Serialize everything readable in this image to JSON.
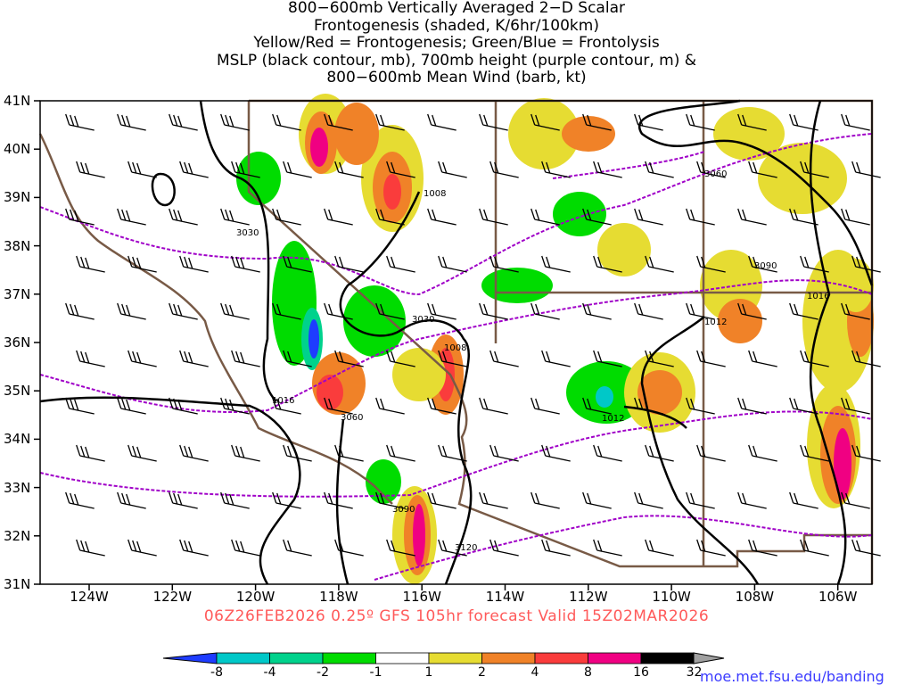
{
  "title_lines": [
    "800−600mb Vertically Averaged 2−D Scalar",
    "Frontogenesis (shaded, K/6hr/100km)",
    "Yellow/Red = Frontogenesis;  Green/Blue = Frontolysis",
    "MSLP (black contour, mb), 700mb height (purple contour, m) &",
    "800−600mb Mean Wind (barb, kt)"
  ],
  "lat_labels": [
    "41N",
    "40N",
    "39N",
    "38N",
    "37N",
    "36N",
    "35N",
    "34N",
    "33N",
    "32N",
    "31N"
  ],
  "lon_labels": [
    "124W",
    "122W",
    "120W",
    "118W",
    "116W",
    "114W",
    "112W",
    "110W",
    "108W",
    "106W"
  ],
  "valid_line": "06Z26FEB2026 0.25º GFS 105hr forecast Valid 15Z02MAR2026",
  "colorbar": {
    "labels": [
      "-8",
      "-4",
      "-2",
      "-1",
      "1",
      "2",
      "4",
      "8",
      "16",
      "32"
    ],
    "colors": [
      "#1e3cff",
      "#00c8c8",
      "#00d28c",
      "#00dc00",
      "#ffffff",
      "#e6dc32",
      "#f08228",
      "#fa3c3c",
      "#f00082",
      "#000000",
      "#a0a0a0"
    ]
  },
  "contour_labels": {
    "mslp": [
      "1008",
      "1008",
      "1012",
      "1012",
      "1016",
      "1016"
    ],
    "height": [
      "3030",
      "3030",
      "3060",
      "3060",
      "3090",
      "3090",
      "3120"
    ]
  },
  "credit": "moe.met.fsu.edu/banding",
  "colors": {
    "mslp": "#000000",
    "height": "#a000c8",
    "border": "#785a46"
  }
}
